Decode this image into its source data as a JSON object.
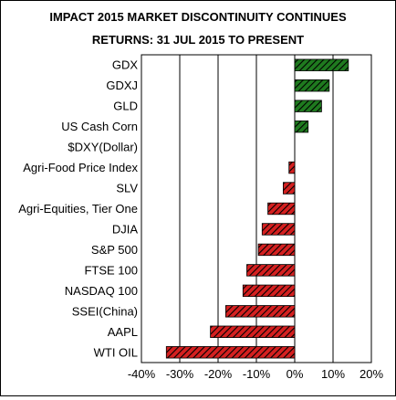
{
  "chart_data": {
    "type": "bar",
    "orientation": "horizontal",
    "title": "IMPACT 2015 MARKET DISCONTINUITY CONTINUES",
    "subtitle": "RETURNS: 31 JUL 2015 TO PRESENT",
    "categories": [
      "GDX",
      "GDXJ",
      "GLD",
      "US Cash Corn",
      "$DXY(Dollar)",
      "Agri-Food Price Index",
      "SLV",
      "Agri-Equities, Tier One",
      "DJIA",
      "S&P 500",
      "FTSE 100",
      "NASDAQ 100",
      "SSEI(China)",
      "AAPL",
      "WTI OIL"
    ],
    "values": [
      0.14,
      0.09,
      0.07,
      0.035,
      0.0,
      -0.015,
      -0.03,
      -0.07,
      -0.085,
      -0.095,
      -0.125,
      -0.135,
      -0.18,
      -0.22,
      -0.335
    ],
    "xlim": [
      -0.4,
      0.2
    ],
    "x_ticks": [
      -0.4,
      -0.3,
      -0.2,
      -0.1,
      0.0,
      0.1,
      0.2
    ],
    "x_tick_labels": [
      "-40%",
      "-30%",
      "-20%",
      "-10%",
      "0%",
      "10%",
      "20%"
    ],
    "grid": "vertical",
    "legend": "none",
    "colors": {
      "positive": "#1f7a1f",
      "negative": "#d42020",
      "hatch": "#000000"
    }
  }
}
